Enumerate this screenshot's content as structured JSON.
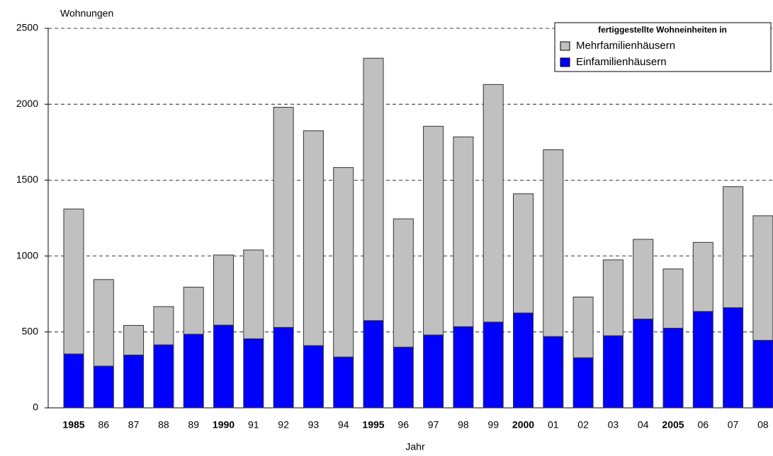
{
  "chart_data": {
    "type": "stacked-bar",
    "y_label": "Wohnungen",
    "x_label": "Jahr",
    "legend_title": "fertiggestellte Wohneinheiten in",
    "categories": [
      "1985",
      "86",
      "87",
      "88",
      "89",
      "1990",
      "91",
      "92",
      "93",
      "94",
      "1995",
      "96",
      "97",
      "98",
      "99",
      "2000",
      "01",
      "02",
      "03",
      "04",
      "2005",
      "06",
      "07",
      "08"
    ],
    "series": [
      {
        "name": "Einfamilienhäusern",
        "color": "#0000ff",
        "values": [
          355,
          275,
          348,
          415,
          485,
          545,
          455,
          530,
          410,
          335,
          575,
          400,
          480,
          535,
          565,
          625,
          470,
          330,
          475,
          585,
          525,
          635,
          660,
          445
        ]
      },
      {
        "name": "Mehrfamilienhäusern",
        "color": "#c0c0c0",
        "values": [
          955,
          570,
          195,
          252,
          310,
          462,
          585,
          1450,
          1415,
          1248,
          1728,
          845,
          1375,
          1250,
          1565,
          785,
          1230,
          400,
          500,
          525,
          390,
          455,
          797,
          820
        ]
      }
    ],
    "ylim": [
      0,
      2500
    ],
    "yticks": [
      0,
      500,
      1000,
      1500,
      2000,
      2500
    ],
    "grid": true,
    "legend": "top-right"
  }
}
